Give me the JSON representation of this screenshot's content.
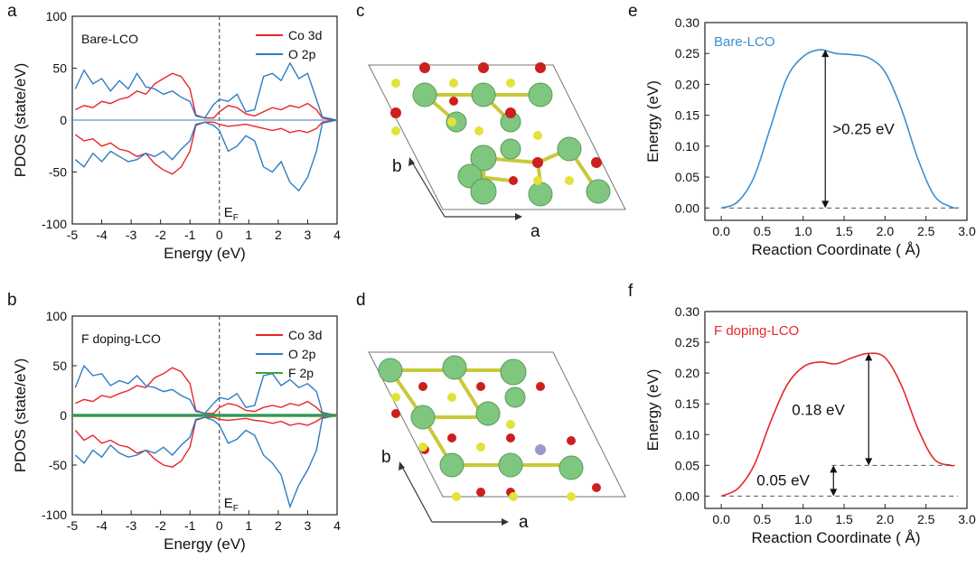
{
  "figure": {
    "panel_labels": {
      "a": "a",
      "b": "b",
      "c": "c",
      "d": "d",
      "e": "e",
      "f": "f"
    },
    "lattice_labels": {
      "c": {
        "a_axis": "a",
        "b_axis": "b"
      },
      "d": {
        "a_axis": "a",
        "b_axis": "b"
      }
    },
    "colors": {
      "co3d": "#e8262a",
      "o2p": "#2f7cc2",
      "f2p": "#3aa335",
      "bare": "#3a8fd0",
      "fdoped": "#e8262a",
      "co_atom": "#7fc77f",
      "o_atom": "#cc1f1f",
      "li_atom": "#e2e23a",
      "f_atom": "#9a9ac8"
    }
  },
  "chart_data": [
    {
      "id": "a",
      "type": "line",
      "title": "",
      "annotation": "Bare-LCO",
      "fermi_label": "E",
      "fermi_subscript": "F",
      "xlabel": "Energy (eV)",
      "ylabel": "PDOS (state/eV)",
      "xlim": [
        -5,
        4
      ],
      "ylim": [
        -100,
        100
      ],
      "xticks": [
        -5,
        -4,
        -3,
        -2,
        -1,
        0,
        1,
        2,
        3,
        4
      ],
      "yticks": [
        -100,
        -50,
        0,
        50,
        100
      ],
      "legend_position": "top-right",
      "series": [
        {
          "name": "Co 3d",
          "color_key": "co3d",
          "x": [
            -4.9,
            -4.6,
            -4.3,
            -4.0,
            -3.7,
            -3.4,
            -3.1,
            -2.8,
            -2.5,
            -2.2,
            -1.9,
            -1.6,
            -1.3,
            -1.0,
            -0.8,
            -0.5,
            -0.2,
            0.0,
            0.3,
            0.6,
            0.9,
            1.2,
            1.5,
            1.8,
            2.1,
            2.4,
            2.7,
            3.0,
            3.3,
            3.5,
            4.0
          ],
          "up": [
            10,
            14,
            12,
            18,
            16,
            20,
            22,
            28,
            25,
            35,
            40,
            45,
            42,
            30,
            5,
            2,
            2,
            8,
            14,
            12,
            6,
            4,
            8,
            12,
            10,
            14,
            12,
            16,
            10,
            2,
            0
          ],
          "dn": [
            -14,
            -20,
            -18,
            -25,
            -22,
            -28,
            -30,
            -35,
            -32,
            -42,
            -48,
            -52,
            -45,
            -30,
            -5,
            -2,
            -2,
            -4,
            -6,
            -5,
            -4,
            -6,
            -8,
            -10,
            -8,
            -12,
            -10,
            -12,
            -8,
            -2,
            0
          ]
        },
        {
          "name": "O 2p",
          "color_key": "o2p",
          "x": [
            -4.9,
            -4.6,
            -4.3,
            -4.0,
            -3.7,
            -3.4,
            -3.1,
            -2.8,
            -2.5,
            -2.2,
            -1.9,
            -1.6,
            -1.3,
            -1.0,
            -0.8,
            -0.5,
            -0.2,
            0.0,
            0.3,
            0.6,
            0.9,
            1.2,
            1.5,
            1.8,
            2.1,
            2.4,
            2.7,
            3.0,
            3.3,
            3.5,
            4.0
          ],
          "up": [
            30,
            48,
            35,
            40,
            28,
            38,
            30,
            45,
            32,
            30,
            25,
            28,
            22,
            18,
            4,
            2,
            15,
            20,
            18,
            25,
            8,
            10,
            42,
            45,
            38,
            55,
            40,
            45,
            20,
            3,
            0
          ],
          "dn": [
            -38,
            -45,
            -32,
            -40,
            -30,
            -35,
            -40,
            -38,
            -32,
            -35,
            -30,
            -38,
            -28,
            -20,
            -4,
            -2,
            -5,
            -10,
            -30,
            -25,
            -15,
            -20,
            -45,
            -50,
            -40,
            -60,
            -68,
            -55,
            -30,
            -3,
            0
          ]
        }
      ]
    },
    {
      "id": "b",
      "type": "line",
      "title": "",
      "annotation": "F doping-LCO",
      "fermi_label": "E",
      "fermi_subscript": "F",
      "xlabel": "Energy (eV)",
      "ylabel": "PDOS (state/eV)",
      "xlim": [
        -5,
        4
      ],
      "ylim": [
        -100,
        100
      ],
      "xticks": [
        -5,
        -4,
        -3,
        -2,
        -1,
        0,
        1,
        2,
        3,
        4
      ],
      "yticks": [
        -100,
        -50,
        0,
        50,
        100
      ],
      "legend_position": "top-right",
      "series": [
        {
          "name": "Co 3d",
          "color_key": "co3d",
          "x": [
            -4.9,
            -4.6,
            -4.3,
            -4.0,
            -3.7,
            -3.4,
            -3.1,
            -2.8,
            -2.5,
            -2.2,
            -1.9,
            -1.6,
            -1.3,
            -1.0,
            -0.8,
            -0.5,
            -0.2,
            0.0,
            0.3,
            0.6,
            0.9,
            1.2,
            1.5,
            1.8,
            2.1,
            2.4,
            2.7,
            3.0,
            3.3,
            3.5,
            4.0
          ],
          "up": [
            12,
            16,
            14,
            20,
            18,
            22,
            25,
            30,
            28,
            38,
            42,
            48,
            44,
            32,
            5,
            2,
            2,
            8,
            12,
            10,
            5,
            4,
            8,
            10,
            8,
            12,
            10,
            14,
            8,
            2,
            0
          ],
          "dn": [
            -15,
            -25,
            -20,
            -28,
            -25,
            -30,
            -32,
            -38,
            -35,
            -44,
            -50,
            -52,
            -46,
            -32,
            -5,
            -2,
            -2,
            -4,
            -5,
            -4,
            -3,
            -5,
            -6,
            -8,
            -6,
            -10,
            -8,
            -10,
            -6,
            -2,
            0
          ]
        },
        {
          "name": "O 2p",
          "color_key": "o2p",
          "x": [
            -4.9,
            -4.6,
            -4.3,
            -4.0,
            -3.7,
            -3.4,
            -3.1,
            -2.8,
            -2.5,
            -2.2,
            -1.9,
            -1.6,
            -1.3,
            -1.0,
            -0.8,
            -0.5,
            -0.2,
            0.0,
            0.3,
            0.6,
            0.9,
            1.2,
            1.5,
            1.8,
            2.1,
            2.4,
            2.7,
            3.0,
            3.3,
            3.5,
            4.0
          ],
          "up": [
            28,
            50,
            40,
            42,
            30,
            35,
            32,
            40,
            30,
            28,
            24,
            26,
            20,
            16,
            4,
            2,
            12,
            18,
            16,
            22,
            8,
            10,
            40,
            42,
            30,
            36,
            28,
            32,
            24,
            3,
            0
          ],
          "dn": [
            -40,
            -48,
            -35,
            -42,
            -30,
            -38,
            -42,
            -40,
            -35,
            -38,
            -32,
            -40,
            -30,
            -22,
            -4,
            -2,
            -5,
            -10,
            -28,
            -24,
            -15,
            -20,
            -40,
            -48,
            -60,
            -92,
            -70,
            -55,
            -35,
            -3,
            0
          ]
        },
        {
          "name": "F 2p",
          "color_key": "f2p",
          "x": [
            -5,
            4
          ],
          "up": [
            1,
            1
          ],
          "dn": [
            -1,
            -1
          ]
        }
      ]
    },
    {
      "id": "e",
      "type": "line",
      "title": "",
      "annotation": "Bare-LCO",
      "xlabel": "Reaction Coordinate ( Å)",
      "ylabel": "Energy (eV)",
      "xlim": [
        -0.2,
        3.0
      ],
      "ylim": [
        -0.02,
        0.3
      ],
      "xticks": [
        0.0,
        0.5,
        1.0,
        1.5,
        2.0,
        2.5,
        3.0
      ],
      "yticks": [
        0.0,
        0.05,
        0.1,
        0.15,
        0.2,
        0.25,
        0.3
      ],
      "series": [
        {
          "name": "Bare-LCO",
          "color_key": "bare",
          "x": [
            0.0,
            0.2,
            0.4,
            0.6,
            0.8,
            1.0,
            1.2,
            1.4,
            1.6,
            1.8,
            2.0,
            2.2,
            2.4,
            2.6,
            2.8,
            2.9
          ],
          "y": [
            0.0,
            0.01,
            0.05,
            0.13,
            0.21,
            0.245,
            0.256,
            0.25,
            0.248,
            0.243,
            0.22,
            0.16,
            0.08,
            0.02,
            0.002,
            0.0
          ]
        }
      ],
      "barrier": {
        "from": 0.0,
        "to": 0.256,
        "at_x": 1.27,
        "label": ">0.25 eV"
      }
    },
    {
      "id": "f",
      "type": "line",
      "title": "",
      "annotation": "F doping-LCO",
      "xlabel": "Reaction Coordinate ( Å)",
      "ylabel": "Energy (eV)",
      "xlim": [
        -0.2,
        3.0
      ],
      "ylim": [
        -0.02,
        0.3
      ],
      "xticks": [
        0.0,
        0.5,
        1.0,
        1.5,
        2.0,
        2.5,
        3.0
      ],
      "yticks": [
        0.0,
        0.05,
        0.1,
        0.15,
        0.2,
        0.25,
        0.3
      ],
      "series": [
        {
          "name": "F doping-LCO",
          "color_key": "fdoped",
          "x": [
            0.0,
            0.2,
            0.4,
            0.6,
            0.8,
            1.0,
            1.2,
            1.4,
            1.6,
            1.8,
            2.0,
            2.2,
            2.4,
            2.6,
            2.8,
            2.85
          ],
          "y": [
            0.0,
            0.012,
            0.05,
            0.12,
            0.18,
            0.21,
            0.218,
            0.215,
            0.225,
            0.232,
            0.225,
            0.18,
            0.11,
            0.06,
            0.05,
            0.05
          ]
        }
      ],
      "barrier": {
        "from": 0.05,
        "to": 0.232,
        "at_x": 1.8,
        "label": "0.18 eV"
      },
      "offset": {
        "from": 0.0,
        "to": 0.05,
        "at_x": 1.37,
        "label": "0.05 eV"
      }
    }
  ]
}
